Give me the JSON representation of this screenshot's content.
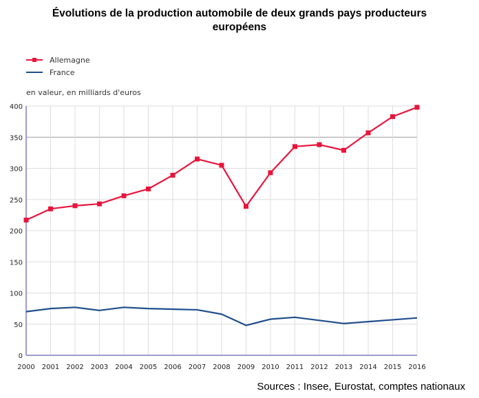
{
  "chart_data": {
    "type": "line",
    "title_lines": [
      "Évolutions de la production automobile de deux grands pays producteurs",
      "européens"
    ],
    "ylabel": "en valeur, en milliards d'euros",
    "xlabel": "",
    "x": [
      2000,
      2001,
      2002,
      2003,
      2004,
      2005,
      2006,
      2007,
      2008,
      2009,
      2010,
      2011,
      2012,
      2013,
      2014,
      2015,
      2016
    ],
    "ylim": [
      0,
      400
    ],
    "yticks": [
      0,
      50,
      100,
      150,
      200,
      250,
      300,
      350,
      400
    ],
    "grid": true,
    "legend_position": "top-left",
    "series": [
      {
        "name": "Allemagne",
        "color": "#e8143c",
        "marker": "square",
        "values": [
          217,
          235,
          240,
          243,
          256,
          267,
          289,
          315,
          305,
          239,
          293,
          335,
          338,
          329,
          357,
          383,
          398
        ]
      },
      {
        "name": "France",
        "color": "#1f4e8c",
        "marker": "none",
        "values": [
          70,
          75,
          77,
          72,
          77,
          75,
          74,
          73,
          66,
          48,
          58,
          61,
          56,
          51,
          54,
          57,
          60
        ]
      }
    ],
    "source": "Sources : Insee, Eurostat, comptes nationaux"
  }
}
